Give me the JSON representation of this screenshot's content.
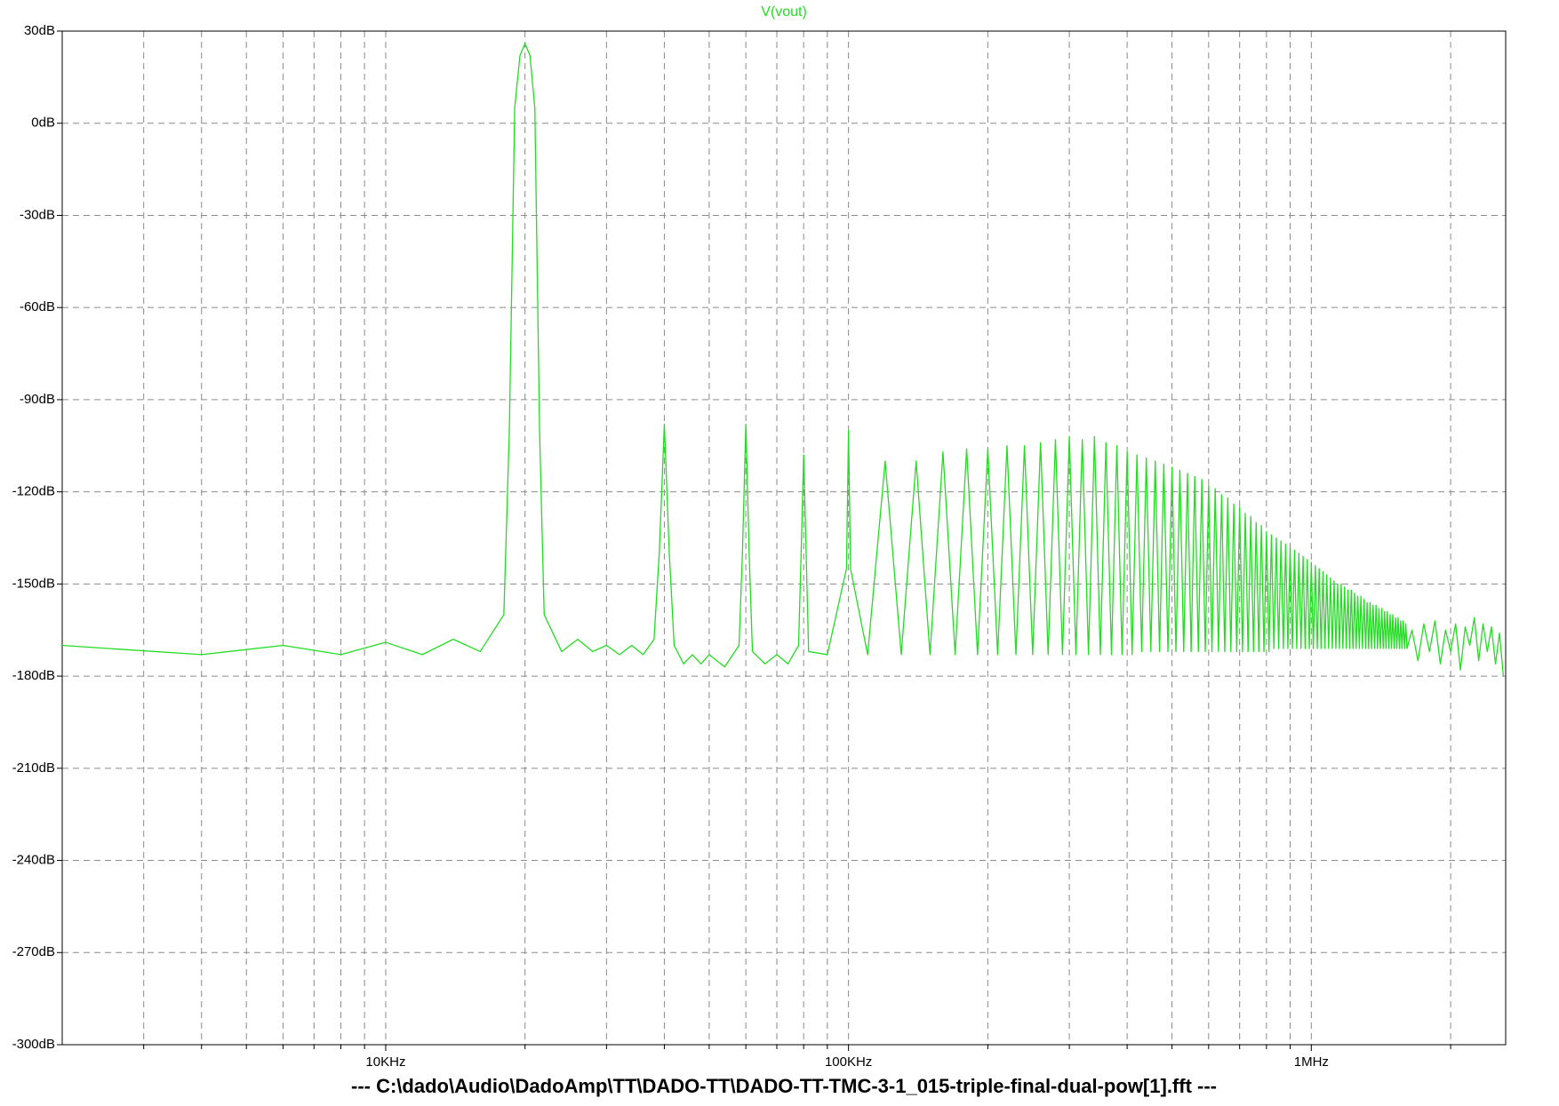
{
  "chart_data": {
    "type": "line",
    "xlog": true,
    "xlim": [
      2000,
      2630000
    ],
    "ylim": [
      -300,
      30
    ],
    "grid": true,
    "xticks": [
      {
        "value": 10000,
        "label": "10KHz"
      },
      {
        "value": 100000,
        "label": "100KHz"
      },
      {
        "value": 1000000,
        "label": "1MHz"
      }
    ],
    "minor_xticks": [
      3000,
      4000,
      5000,
      6000,
      7000,
      8000,
      9000,
      20000,
      30000,
      40000,
      50000,
      60000,
      70000,
      80000,
      90000,
      200000,
      300000,
      400000,
      500000,
      600000,
      700000,
      800000,
      900000,
      2000000
    ],
    "yticks": [
      {
        "value": 30,
        "label": "30dB"
      },
      {
        "value": 0,
        "label": "0dB"
      },
      {
        "value": -30,
        "label": "-30dB"
      },
      {
        "value": -60,
        "label": "-60dB"
      },
      {
        "value": -90,
        "label": "-90dB"
      },
      {
        "value": -120,
        "label": "-120dB"
      },
      {
        "value": -150,
        "label": "-150dB"
      },
      {
        "value": -180,
        "label": "-180dB"
      },
      {
        "value": -210,
        "label": "-210dB"
      },
      {
        "value": -240,
        "label": "-240dB"
      },
      {
        "value": -270,
        "label": "-270dB"
      },
      {
        "value": -300,
        "label": "-300dB"
      }
    ],
    "footer": "---  C:\\dado\\Audio\\DadoAmp\\TT\\DADO-TT\\DADO-TT-TMC-3-1_015-triple-final-dual-pow[1].fft  ---",
    "x": [
      2000,
      4000,
      6000,
      8000,
      10000,
      12000,
      14000,
      16000,
      18000,
      18500,
      19000,
      19500,
      20000,
      20500,
      21000,
      21500,
      22000,
      24000,
      26000,
      28000,
      30000,
      32000,
      34000,
      36000,
      38000,
      39000,
      40000,
      41000,
      42000,
      44000,
      46000,
      48000,
      50000,
      54000,
      58000,
      59000,
      60000,
      61000,
      62000,
      66000,
      70000,
      74000,
      78000,
      79000,
      80000,
      81000,
      82000,
      90000,
      99000,
      100000,
      101000,
      110000,
      120000,
      130000,
      140000,
      150000,
      160000,
      170000,
      180000,
      190000,
      200000,
      210000,
      220000,
      230000,
      240000,
      250000,
      260000,
      270000,
      280000,
      290000,
      300000,
      310000,
      320000,
      330000,
      340000,
      350000,
      360000,
      370000,
      380000,
      390000,
      400000,
      410000,
      420000,
      430000,
      440000,
      450000,
      460000,
      470000,
      480000,
      490000,
      500000,
      510000,
      520000,
      530000,
      540000,
      550000,
      560000,
      570000,
      580000,
      590000,
      600000,
      610000,
      620000,
      630000,
      640000,
      650000,
      660000,
      670000,
      680000,
      690000,
      700000,
      710000,
      720000,
      730000,
      740000,
      750000,
      760000,
      770000,
      780000,
      790000,
      800000,
      810000,
      820000,
      830000,
      840000,
      850000,
      860000,
      870000,
      880000,
      890000,
      900000,
      910000,
      920000,
      930000,
      940000,
      950000,
      960000,
      970000,
      980000,
      990000,
      1000000,
      1010000,
      1020000,
      1030000,
      1040000,
      1050000,
      1060000,
      1070000,
      1080000,
      1090000,
      1100000,
      1110000,
      1120000,
      1130000,
      1140000,
      1150000,
      1160000,
      1170000,
      1180000,
      1190000,
      1200000,
      1210000,
      1220000,
      1230000,
      1240000,
      1250000,
      1260000,
      1270000,
      1280000,
      1290000,
      1300000,
      1310000,
      1320000,
      1330000,
      1340000,
      1350000,
      1360000,
      1370000,
      1380000,
      1390000,
      1400000,
      1410000,
      1420000,
      1430000,
      1440000,
      1450000,
      1460000,
      1470000,
      1480000,
      1490000,
      1500000,
      1510000,
      1520000,
      1530000,
      1540000,
      1550000,
      1560000,
      1570000,
      1580000,
      1590000,
      1600000,
      1610000,
      1650000,
      1700000,
      1750000,
      1800000,
      1850000,
      1900000,
      1950000,
      2000000,
      2050000,
      2100000,
      2150000,
      2200000,
      2250000,
      2300000,
      2350000,
      2400000,
      2450000,
      2500000,
      2550000,
      2600000
    ],
    "series": [
      {
        "name": "V(vout)",
        "color": "#22dd22",
        "values": [
          -170,
          -173,
          -170,
          -173,
          -169,
          -173,
          -168,
          -172,
          -160,
          -100,
          5,
          22,
          26,
          22,
          5,
          -100,
          -160,
          -172,
          -168,
          -172,
          -170,
          -173,
          -170,
          -173,
          -168,
          -140,
          -98,
          -140,
          -170,
          -176,
          -173,
          -176,
          -173,
          -177,
          -170,
          -140,
          -98,
          -140,
          -172,
          -176,
          -173,
          -176,
          -170,
          -140,
          -108,
          -140,
          -172,
          -173,
          -145,
          -100,
          -145,
          -173,
          -110,
          -173,
          -110,
          -173,
          -107,
          -173,
          -106,
          -173,
          -106,
          -173,
          -105,
          -173,
          -105,
          -173,
          -104,
          -173,
          -103,
          -173,
          -102,
          -173,
          -103,
          -173,
          -102,
          -173,
          -104,
          -173,
          -105,
          -173,
          -107,
          -173,
          -108,
          -172,
          -109,
          -172,
          -110,
          -172,
          -111,
          -172,
          -112,
          -172,
          -113,
          -172,
          -114,
          -172,
          -115,
          -172,
          -116,
          -172,
          -118,
          -172,
          -119,
          -172,
          -121,
          -172,
          -122,
          -172,
          -124,
          -172,
          -125,
          -172,
          -127,
          -172,
          -128,
          -172,
          -130,
          -172,
          -131,
          -172,
          -133,
          -172,
          -134,
          -171,
          -135,
          -171,
          -136,
          -171,
          -137,
          -171,
          -138,
          -171,
          -139,
          -171,
          -140,
          -171,
          -141,
          -171,
          -142,
          -171,
          -143,
          -171,
          -144,
          -171,
          -145,
          -171,
          -146,
          -171,
          -147,
          -171,
          -148,
          -171,
          -149,
          -171,
          -150,
          -171,
          -150,
          -171,
          -151,
          -171,
          -152,
          -171,
          -152,
          -171,
          -153,
          -171,
          -154,
          -171,
          -154,
          -171,
          -155,
          -171,
          -156,
          -171,
          -156,
          -171,
          -157,
          -171,
          -157,
          -171,
          -158,
          -171,
          -158,
          -171,
          -159,
          -171,
          -159,
          -171,
          -160,
          -171,
          -160,
          -171,
          -161,
          -171,
          -161,
          -171,
          -162,
          -171,
          -162,
          -171,
          -163,
          -171,
          -165,
          -175,
          -163,
          -172,
          -162,
          -176,
          -165,
          -172,
          -163,
          -178,
          -164,
          -170,
          -161,
          -175,
          -163,
          -172,
          -164,
          -176,
          -166,
          -180
        ]
      }
    ]
  }
}
